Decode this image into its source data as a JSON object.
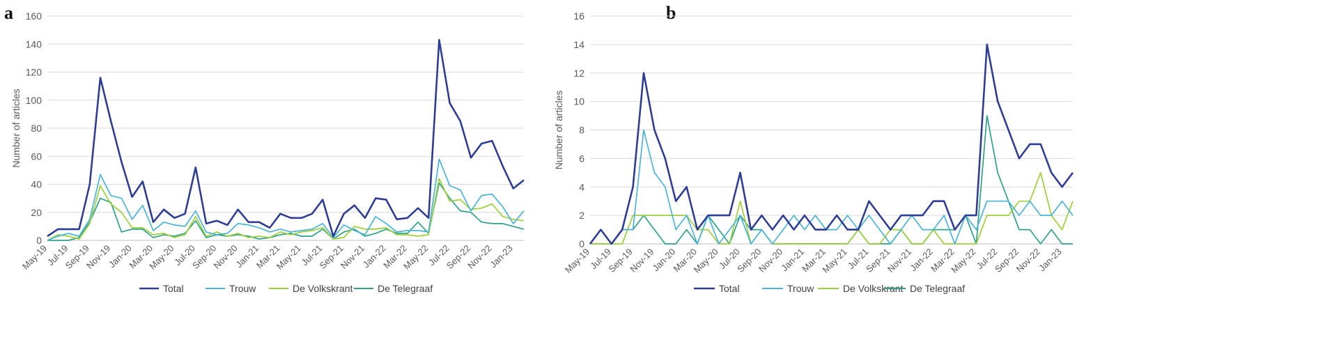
{
  "chart_data": [
    {
      "type": "line",
      "panel_label": "a",
      "ylabel": "Number of articles",
      "xlabel": "",
      "ylim": [
        0,
        160
      ],
      "yticks": [
        0,
        20,
        40,
        60,
        80,
        100,
        120,
        140,
        160
      ],
      "grid": "horizontal",
      "legend_position": "bottom",
      "x": [
        "May-19",
        "Jun-19",
        "Jul-19",
        "Aug-19",
        "Sep-19",
        "Oct-19",
        "Nov-19",
        "Dec-19",
        "Jan-20",
        "Feb-20",
        "Mar-20",
        "Apr-20",
        "May-20",
        "Jun-20",
        "Jul-20",
        "Aug-20",
        "Sep-20",
        "Oct-20",
        "Nov-20",
        "Dec-20",
        "Jan-21",
        "Feb-21",
        "Mar-21",
        "Apr-21",
        "May-21",
        "Jun-21",
        "Jul-21",
        "Aug-21",
        "Sep-21",
        "Oct-21",
        "Nov-21",
        "Dec-21",
        "Jan-22",
        "Feb-22",
        "Mar-22",
        "Apr-22",
        "May-22",
        "Jun-22",
        "Jul-22",
        "Aug-22",
        "Sep-22",
        "Oct-22",
        "Nov-22",
        "Dec-22",
        "Jan-23",
        "Feb-23"
      ],
      "xtick_labels": [
        "May-19",
        "Jul-19",
        "Sep-19",
        "Nov-19",
        "Jan-20",
        "Mar-20",
        "May-20",
        "Jul-20",
        "Sep-20",
        "Nov-20",
        "Jan-21",
        "Mar-21",
        "May-21",
        "Jul-21",
        "Sep-21",
        "Nov-21",
        "Jan-22",
        "Mar-22",
        "May-22",
        "Jul-22",
        "Sep-22",
        "Nov-22",
        "Jan-23"
      ],
      "series": [
        {
          "name": "Total",
          "color": "#2e3d93",
          "values": [
            3,
            8,
            8,
            8,
            40,
            116,
            85,
            56,
            31,
            42,
            13,
            22,
            16,
            19,
            52,
            12,
            14,
            11,
            22,
            13,
            13,
            9,
            19,
            16,
            16,
            19,
            29,
            3,
            19,
            25,
            16,
            30,
            29,
            15,
            16,
            23,
            16,
            143,
            98,
            85,
            59,
            69,
            71,
            53,
            37,
            43
          ]
        },
        {
          "name": "Trouw",
          "color": "#4bb3d6",
          "values": [
            0,
            3,
            5,
            3,
            15,
            47,
            32,
            30,
            15,
            25,
            7,
            13,
            11,
            10,
            21,
            6,
            4,
            5,
            12,
            11,
            9,
            6,
            8,
            6,
            7,
            8,
            12,
            2,
            11,
            7,
            4,
            17,
            12,
            6,
            7,
            7,
            6,
            58,
            39,
            36,
            21,
            32,
            33,
            24,
            12,
            21
          ]
        },
        {
          "name": "De Volkskrant",
          "color": "#9ccf3a",
          "values": [
            0,
            4,
            3,
            1,
            12,
            39,
            26,
            20,
            9,
            9,
            4,
            5,
            2,
            4,
            17,
            3,
            6,
            3,
            5,
            2,
            3,
            2,
            6,
            4,
            6,
            7,
            9,
            1,
            2,
            10,
            8,
            8,
            9,
            4,
            4,
            3,
            4,
            44,
            28,
            29,
            22,
            23,
            26,
            17,
            15,
            14
          ]
        },
        {
          "name": "De Telegraaf",
          "color": "#2fa089",
          "values": [
            0,
            0,
            0,
            2,
            13,
            30,
            27,
            6,
            8,
            8,
            2,
            4,
            3,
            5,
            14,
            2,
            4,
            3,
            4,
            3,
            1,
            2,
            4,
            5,
            3,
            3,
            8,
            1,
            6,
            8,
            3,
            5,
            8,
            5,
            5,
            13,
            5,
            41,
            30,
            21,
            20,
            13,
            12,
            12,
            10,
            8
          ]
        }
      ]
    },
    {
      "type": "line",
      "panel_label": "b",
      "ylabel": "Number of articles",
      "xlabel": "",
      "ylim": [
        0,
        16
      ],
      "yticks": [
        0,
        2,
        4,
        6,
        8,
        10,
        12,
        14,
        16
      ],
      "grid": "horizontal",
      "legend_position": "bottom",
      "x": [
        "May-19",
        "Jun-19",
        "Jul-19",
        "Aug-19",
        "Sep-19",
        "Oct-19",
        "Nov-19",
        "Dec-19",
        "Jan-20",
        "Feb-20",
        "Mar-20",
        "Apr-20",
        "May-20",
        "Jun-20",
        "Jul-20",
        "Aug-20",
        "Sep-20",
        "Oct-20",
        "Nov-20",
        "Dec-20",
        "Jan-21",
        "Feb-21",
        "Mar-21",
        "Apr-21",
        "May-21",
        "Jun-21",
        "Jul-21",
        "Aug-21",
        "Sep-21",
        "Oct-21",
        "Nov-21",
        "Dec-21",
        "Jan-22",
        "Feb-22",
        "Mar-22",
        "Apr-22",
        "May-22",
        "Jun-22",
        "Jul-22",
        "Aug-22",
        "Sep-22",
        "Oct-22",
        "Nov-22",
        "Dec-22",
        "Jan-23",
        "Feb-23"
      ],
      "xtick_labels": [
        "May-19",
        "Jul-19",
        "Sep-19",
        "Nov-19",
        "Jan-20",
        "Mar-20",
        "May-20",
        "Jul-20",
        "Sep-20",
        "Nov-20",
        "Jan-21",
        "Mar-21",
        "May-21",
        "Jul-21",
        "Sep-21",
        "Nov-21",
        "Jan-22",
        "Mar-22",
        "May-22",
        "Jul-22",
        "Sep-22",
        "Nov-22",
        "Jan-23"
      ],
      "series": [
        {
          "name": "Total",
          "color": "#2e3d93",
          "values": [
            0,
            1,
            0,
            1,
            4,
            12,
            8,
            6,
            3,
            4,
            1,
            2,
            2,
            2,
            5,
            1,
            2,
            1,
            2,
            1,
            2,
            1,
            1,
            2,
            1,
            1,
            3,
            2,
            1,
            2,
            2,
            2,
            3,
            3,
            1,
            2,
            2,
            14,
            10,
            8,
            6,
            7,
            7,
            5,
            4,
            5
          ]
        },
        {
          "name": "Trouw",
          "color": "#4bb3d6",
          "values": [
            0,
            1,
            0,
            1,
            1,
            8,
            5,
            4,
            1,
            2,
            0,
            2,
            0,
            1,
            2,
            0,
            1,
            0,
            1,
            2,
            1,
            2,
            1,
            1,
            2,
            1,
            2,
            1,
            0,
            1,
            2,
            1,
            1,
            2,
            0,
            2,
            1,
            3,
            3,
            3,
            2,
            3,
            2,
            2,
            3,
            2
          ]
        },
        {
          "name": "De Volkskrant",
          "color": "#9ccf3a",
          "values": [
            0,
            0,
            0,
            0,
            2,
            2,
            2,
            2,
            2,
            2,
            1,
            1,
            0,
            0,
            3,
            0,
            1,
            0,
            0,
            0,
            0,
            0,
            0,
            0,
            0,
            1,
            0,
            0,
            1,
            1,
            0,
            0,
            1,
            0,
            0,
            0,
            0,
            2,
            2,
            2,
            3,
            3,
            5,
            2,
            1,
            3
          ]
        },
        {
          "name": "De Telegraaf",
          "color": "#2fa089",
          "values": [
            0,
            0,
            0,
            1,
            1,
            2,
            1,
            0,
            0,
            1,
            0,
            2,
            1,
            0,
            2,
            1,
            1,
            0,
            0,
            0,
            0,
            0,
            0,
            0,
            0,
            1,
            0,
            0,
            0,
            1,
            0,
            0,
            1,
            1,
            1,
            2,
            0,
            9,
            5,
            3,
            1,
            1,
            0,
            1,
            0,
            0
          ]
        }
      ]
    }
  ]
}
